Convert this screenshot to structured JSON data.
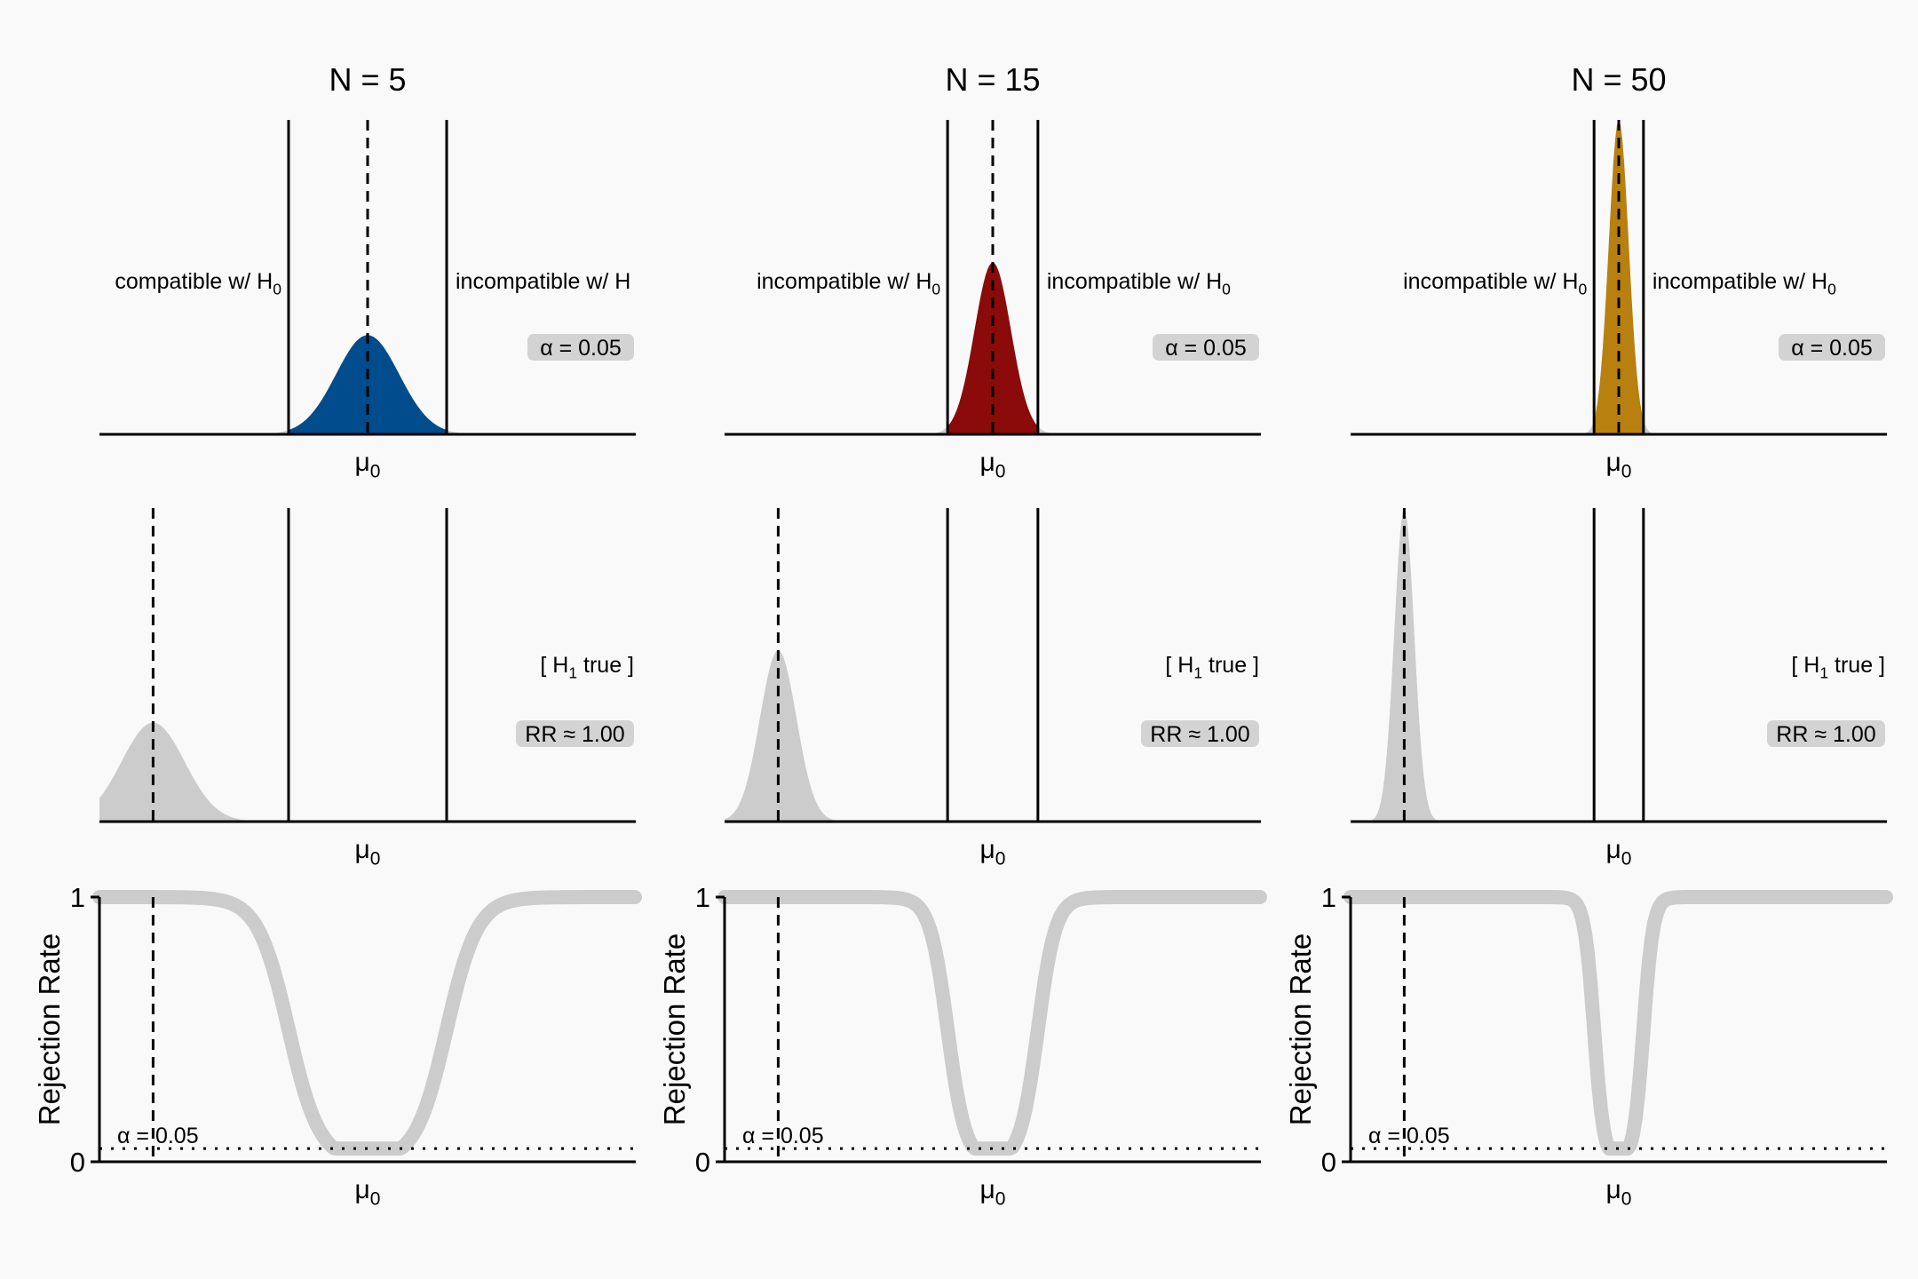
{
  "figure": {
    "background": "#f9f9f9",
    "ink": "#000000",
    "null_shade": "#cccccc",
    "label_bg": "#d3d3d3"
  },
  "x_tick_label": "μ0",
  "rr_y_label": "Rejection Rate",
  "alpha_text": "α = 0.05",
  "h1_text": "[ H1 true ]",
  "panels": [
    {
      "title": "N = 5",
      "n": 5,
      "color": "#004c8c",
      "null_left": "compatible w/ H0",
      "null_right": "incompatible w/ H",
      "alpha_label": "α = 0.05",
      "rr_label": "RR ≈ 1.00"
    },
    {
      "title": "N = 15",
      "n": 15,
      "color": "#8b0a0a",
      "null_left": "incompatible w/ H0",
      "null_right": "incompatible w/ H0",
      "alpha_label": "α = 0.05",
      "rr_label": "RR ≈ 1.00"
    },
    {
      "title": "N = 50",
      "n": 50,
      "color": "#b8800f",
      "null_left": "incompatible w/ H0",
      "null_right": "incompatible w/ H0",
      "alpha_label": "α = 0.05",
      "rr_label": "RR ≈ 1.00"
    }
  ],
  "chart_data": [
    {
      "type": "area",
      "row": "null distribution (H0 true)",
      "x_range": [
        -3.8,
        3.8
      ],
      "true_mean": 0,
      "sd_per_panel": [
        0.447,
        0.258,
        0.141
      ],
      "critical_values_per_panel": [
        [
          -1.12,
          1.12
        ],
        [
          -0.64,
          0.64
        ],
        [
          -0.35,
          0.35
        ]
      ],
      "alpha": 0.05
    },
    {
      "type": "area",
      "row": "sampling distribution (H1 true)",
      "x_range": [
        -3.8,
        3.8
      ],
      "true_mean": -3.04,
      "sd_per_panel": [
        0.447,
        0.258,
        0.141
      ],
      "rejection_rate": [
        1.0,
        1.0,
        1.0
      ]
    },
    {
      "type": "line",
      "row": "rejection rate curve",
      "x_range": [
        -3.8,
        3.8
      ],
      "ylim": [
        0,
        1
      ],
      "y_ticks": [
        0,
        1
      ],
      "alpha": 0.05,
      "marked_mean": -3.04
    }
  ]
}
